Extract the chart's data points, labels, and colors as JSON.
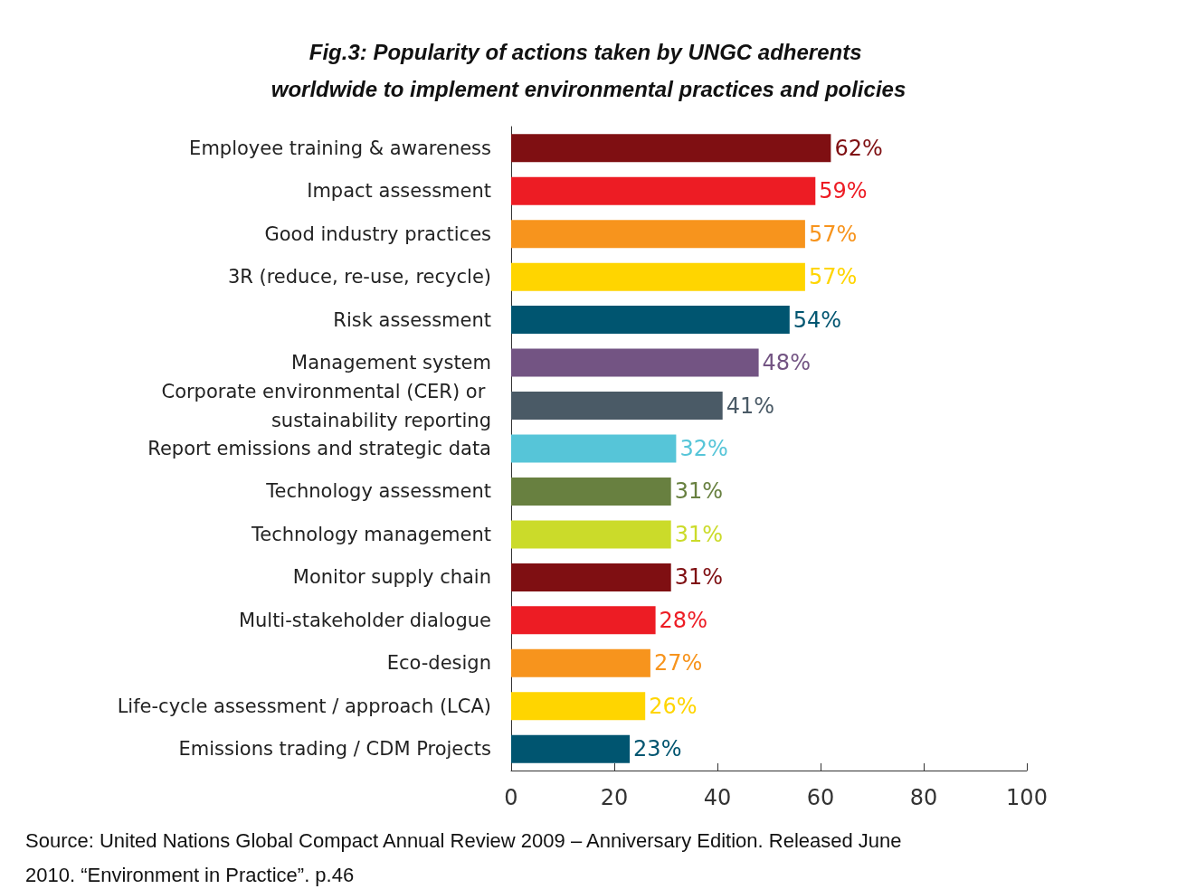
{
  "chart_data": {
    "type": "bar",
    "orientation": "horizontal",
    "title": "Fig.3: Popularity of actions taken by UNGC adherents worldwide to implement environmental practices and policies",
    "categories": [
      "Employee training & awareness",
      "Impact assessment",
      "Good industry practices",
      "3R (reduce, re-use, recycle)",
      "Risk assessment",
      "Management system",
      "Corporate environmental (CER) or sustainability reporting",
      "Report emissions and strategic data",
      "Technology assessment",
      "Technology management",
      "Monitor supply chain",
      "Multi-stakeholder dialogue",
      "Eco-design",
      "Life-cycle assessment / approach (LCA)",
      "Emissions trading / CDM Projects"
    ],
    "values": [
      62,
      59,
      57,
      57,
      54,
      48,
      41,
      32,
      31,
      31,
      31,
      28,
      27,
      26,
      23
    ],
    "value_labels": [
      "62%",
      "59%",
      "57%",
      "57%",
      "54%",
      "48%",
      "41%",
      "32%",
      "31%",
      "31%",
      "31%",
      "28%",
      "27%",
      "26%",
      "23%"
    ],
    "colors": [
      "#7f0f12",
      "#ed1c24",
      "#f7941d",
      "#ffd500",
      "#005570",
      "#735483",
      "#4a5a66",
      "#56c5d8",
      "#688040",
      "#cbdb2a",
      "#7f0f12",
      "#ed1c24",
      "#f7941d",
      "#ffd500",
      "#005570"
    ],
    "xlim": [
      0,
      100
    ],
    "xticks": [
      0,
      20,
      40,
      60,
      80,
      100
    ],
    "grid": false,
    "annotations": [
      "Source: United Nations Global Compact Annual Review 2009 – Anniversary Edition. Released June 2010. “Environment in Practice”. p.46"
    ]
  }
}
